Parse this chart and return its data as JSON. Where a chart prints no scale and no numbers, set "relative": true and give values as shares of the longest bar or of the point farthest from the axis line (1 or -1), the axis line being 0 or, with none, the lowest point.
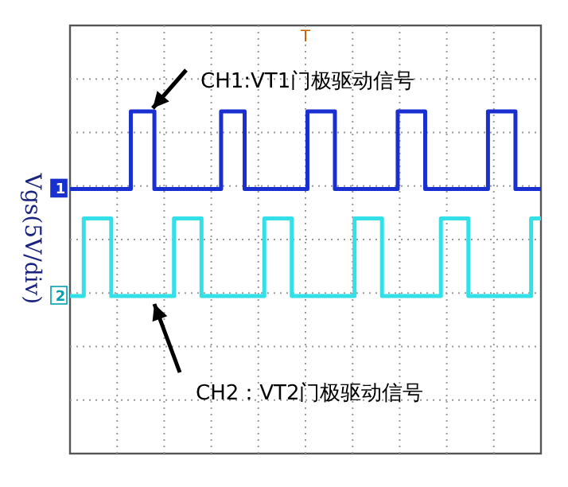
{
  "chart_data": {
    "type": "step",
    "relative": true,
    "grid": true,
    "ylabel": "Vgs(5V/div)",
    "categories": [
      null,
      null,
      null,
      null,
      null,
      null,
      null,
      null,
      null,
      null,
      null,
      null,
      null,
      null,
      null,
      null,
      null,
      null,
      null,
      null,
      null,
      null,
      null,
      null,
      null,
      null,
      null,
      null,
      null,
      null,
      null,
      null,
      null,
      null,
      null,
      null,
      null,
      null,
      null,
      null,
      null,
      null,
      null,
      null,
      null,
      null,
      null,
      null,
      null,
      null,
      null,
      null,
      null,
      null,
      null,
      null,
      null,
      null,
      null,
      null,
      null,
      null,
      null,
      null,
      null,
      null,
      null,
      null,
      null,
      null,
      null,
      null,
      null,
      null,
      null,
      null,
      null,
      null,
      null,
      null,
      null,
      null,
      null,
      null,
      null,
      null,
      null,
      null,
      null,
      null,
      null,
      null,
      null,
      null,
      null,
      null,
      null,
      null,
      null,
      null,
      null,
      null,
      null,
      null,
      null,
      null,
      null,
      null,
      null,
      null,
      null,
      null,
      null,
      null,
      null,
      null,
      null,
      null,
      null,
      null,
      null
    ],
    "series": [
      {
        "color": "#1a2fd0",
        "values": [
          0.58,
          0.58,
          0.58,
          0.58,
          0.58,
          0.58,
          0.58,
          0.58,
          0.58,
          0.58,
          0.58,
          0.58,
          0.58,
          0.58,
          0.58,
          0.58,
          1,
          1,
          1,
          1,
          1,
          1,
          0.58,
          0.58,
          0.58,
          0.58,
          0.58,
          0.58,
          0.58,
          0.58,
          0.58,
          0.58,
          0.58,
          0.58,
          0.58,
          0.58,
          0.58,
          0.58,
          0.58,
          1,
          1,
          1,
          1,
          1,
          1,
          0.58,
          0.58,
          0.58,
          0.58,
          0.58,
          0.58,
          0.58,
          0.58,
          0.58,
          0.58,
          0.58,
          0.58,
          0.58,
          0.58,
          0.58,
          0.58,
          1,
          1,
          1,
          1,
          1,
          1,
          1,
          0.58,
          0.58,
          0.58,
          0.58,
          0.58,
          0.58,
          0.58,
          0.58,
          0.58,
          0.58,
          0.58,
          0.58,
          0.58,
          0.58,
          0.58,
          0.58,
          1,
          1,
          1,
          1,
          1,
          1,
          1,
          0.58,
          0.58,
          0.58,
          0.58,
          0.58,
          0.58,
          0.58,
          0.58,
          0.58,
          0.58,
          0.58,
          0.58,
          0.58,
          0.58,
          0.58,
          0.58,
          1,
          1,
          1,
          1,
          1,
          1,
          1,
          0.58,
          0.58,
          0.58,
          0.58,
          0.58,
          0.58,
          0.58
        ]
      },
      {
        "color": "#33e0e8",
        "values": [
          0,
          0,
          0,
          0,
          0.42,
          0.42,
          0.42,
          0.42,
          0.42,
          0.42,
          0.42,
          0,
          0,
          0,
          0,
          0,
          0,
          0,
          0,
          0,
          0,
          0,
          0,
          0,
          0,
          0,
          0,
          0.42,
          0.42,
          0.42,
          0.42,
          0.42,
          0.42,
          0.42,
          0,
          0,
          0,
          0,
          0,
          0,
          0,
          0,
          0,
          0,
          0,
          0,
          0,
          0,
          0,
          0,
          0.42,
          0.42,
          0.42,
          0.42,
          0.42,
          0.42,
          0.42,
          0,
          0,
          0,
          0,
          0,
          0,
          0,
          0,
          0,
          0,
          0,
          0,
          0,
          0,
          0,
          0,
          0.42,
          0.42,
          0.42,
          0.42,
          0.42,
          0.42,
          0.42,
          0,
          0,
          0,
          0,
          0,
          0,
          0,
          0,
          0,
          0,
          0,
          0,
          0,
          0,
          0,
          0.42,
          0.42,
          0.42,
          0.42,
          0.42,
          0.42,
          0.42,
          0,
          0,
          0,
          0,
          0,
          0,
          0,
          0,
          0,
          0,
          0,
          0,
          0,
          0,
          0,
          0,
          0.42,
          0.42,
          0.42
        ]
      }
    ],
    "annotations": [
      "CH1:VT1门极驱动信号",
      "CH2：VT2门极驱动信号",
      {
        "text": "1",
        "y": 0.58
      },
      {
        "text": "2",
        "y": 0
      },
      "T"
    ]
  }
}
